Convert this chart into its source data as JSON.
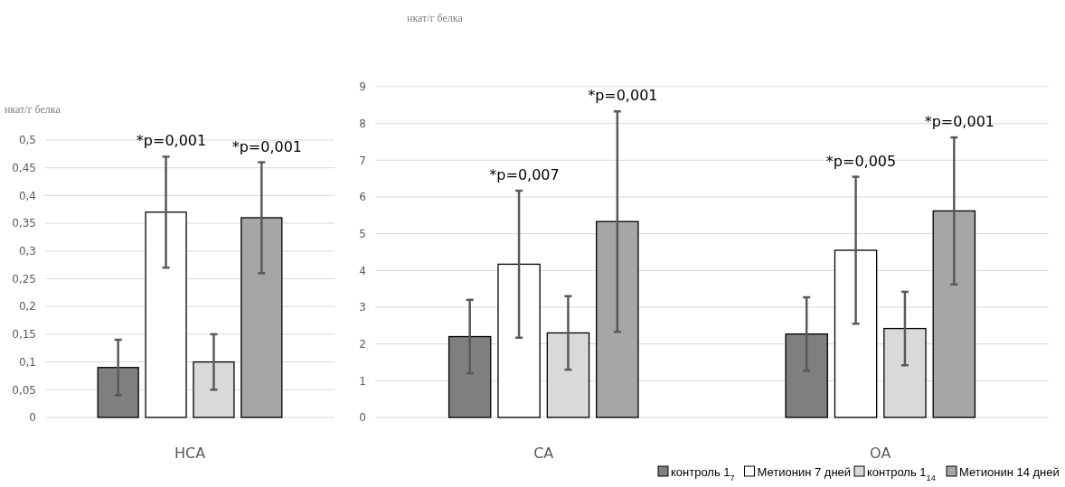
{
  "chart_data": [
    {
      "type": "bar",
      "ylabel": "нкат/г белка",
      "categories": [
        "HCA"
      ],
      "ylim": [
        0,
        0.5
      ],
      "yticks": [
        "0",
        {
          "value": 0.05,
          "label": "0,05"
        },
        {
          "value": 0.1,
          "label": "0,1"
        },
        {
          "value": 0.15,
          "label": "0,15"
        },
        {
          "value": 0.2,
          "label": "0,2"
        },
        {
          "value": 0.25,
          "label": "0,25"
        },
        {
          "value": 0.3,
          "label": "0,3"
        },
        {
          "value": 0.35,
          "label": "0,35"
        },
        {
          "value": 0.4,
          "label": "0,4"
        },
        {
          "value": 0.45,
          "label": "0,45"
        },
        {
          "value": 0.5,
          "label": "0,5"
        }
      ],
      "grid": "y",
      "legend": false,
      "annotations": [
        "*p=0,001",
        "*p=0,001"
      ],
      "series": [
        {
          "color": "#7f7f7f",
          "values": [
            0.09
          ],
          "errors": [
            0.05
          ]
        },
        {
          "color": "#ffffff",
          "values": [
            0.37
          ],
          "errors": [
            0.1
          ]
        },
        {
          "color": "#d9d9d9",
          "values": [
            0.1
          ],
          "errors": [
            0.05
          ]
        },
        {
          "color": "#a6a6a6",
          "values": [
            0.36
          ],
          "errors": [
            0.1
          ]
        }
      ]
    },
    {
      "type": "bar",
      "ylabel": "нкат/г белка",
      "categories": [
        "CA",
        "OA"
      ],
      "ylim": [
        0,
        9
      ],
      "yticks": [
        0,
        1,
        2,
        3,
        4,
        5,
        6,
        7,
        8,
        9
      ],
      "grid": "y",
      "legend": "bottom",
      "annotations": [
        "*p=0,007",
        "*p=0,001",
        "*p=0,005",
        "*p=0,001"
      ],
      "series": [
        {
          "name": "контроль 1$_{7}$",
          "color": "#7f7f7f",
          "values": [
            2.2,
            2.27
          ],
          "errors": [
            1,
            1
          ]
        },
        {
          "name": "Метионин 7 дней",
          "color": "#ffffff",
          "values": [
            4.17,
            4.55
          ],
          "errors": [
            2,
            2
          ]
        },
        {
          "name": "контроль 1$_{14}$",
          "color": "#d9d9d9",
          "values": [
            2.3,
            2.42
          ],
          "errors": [
            1,
            1
          ]
        },
        {
          "name": "Метионин 14 дней",
          "color": "#a6a6a6",
          "values": [
            5.33,
            5.62
          ],
          "errors": [
            3,
            2
          ]
        }
      ]
    }
  ]
}
